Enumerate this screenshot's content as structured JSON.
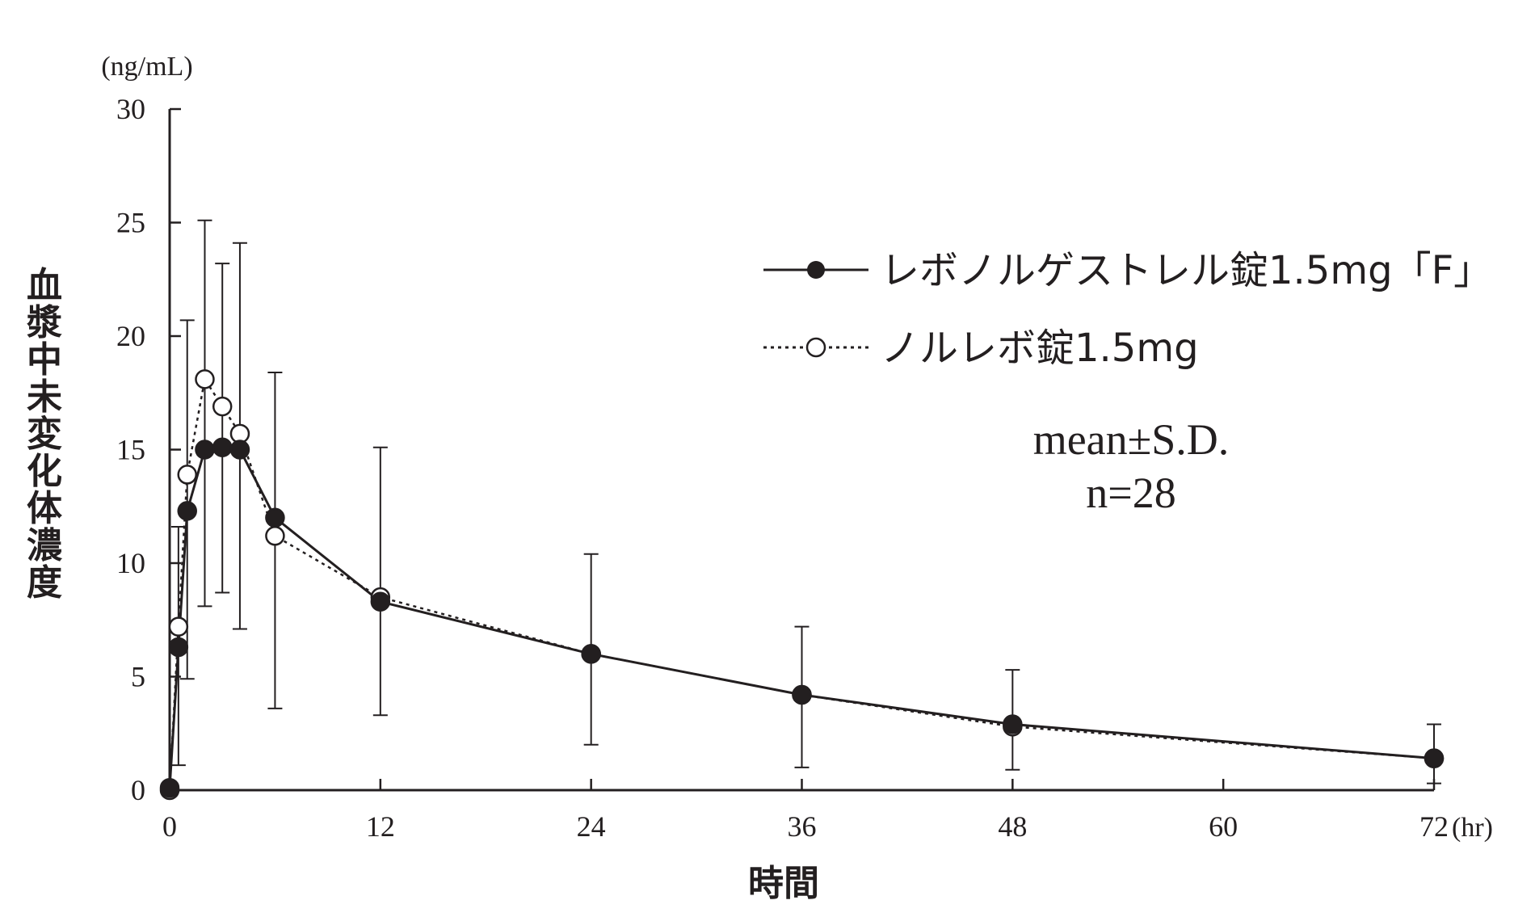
{
  "chart_data": {
    "type": "line",
    "xlabel": "時間",
    "ylabel": "血漿中未変化体濃度",
    "x_unit": "(hr)",
    "y_unit": "(ng/mL)",
    "xlim": [
      0,
      72
    ],
    "ylim": [
      0,
      30
    ],
    "x_ticks": [
      0,
      12,
      24,
      36,
      48,
      60,
      72
    ],
    "y_ticks": [
      0,
      5,
      10,
      15,
      20,
      25,
      30
    ],
    "grid": false,
    "legend_position": "top-right",
    "annotation": [
      "mean±S.D.",
      "n=28"
    ],
    "series": [
      {
        "name": "レボノルゲストレル錠1.5mg「F」",
        "marker": "filled-circle",
        "line": "solid",
        "color": "#231f20",
        "x": [
          0,
          0.5,
          1,
          2,
          3,
          4,
          6,
          12,
          24,
          36,
          48,
          72
        ],
        "y": [
          0.1,
          6.3,
          12.3,
          15.0,
          15.1,
          15.0,
          12.0,
          8.3,
          6.0,
          4.2,
          2.9,
          1.4
        ],
        "sd_upper": [
          null,
          11.6,
          20.7,
          25.1,
          23.2,
          24.1,
          18.4,
          15.1,
          10.4,
          7.2,
          5.3,
          2.9
        ],
        "sd_lower": [
          null,
          1.1,
          4.9,
          8.1,
          8.7,
          7.1,
          3.6,
          3.3,
          2.0,
          1.0,
          0.9,
          0.3
        ]
      },
      {
        "name": "ノルレボ錠1.5mg",
        "marker": "open-circle",
        "line": "dotted",
        "color": "#231f20",
        "x": [
          0,
          0.5,
          1,
          2,
          3,
          4,
          6,
          12,
          24,
          36,
          48,
          72
        ],
        "y": [
          0.0,
          7.2,
          13.9,
          18.1,
          16.9,
          15.7,
          11.2,
          8.5,
          6.0,
          4.2,
          2.8,
          1.4
        ]
      }
    ]
  }
}
